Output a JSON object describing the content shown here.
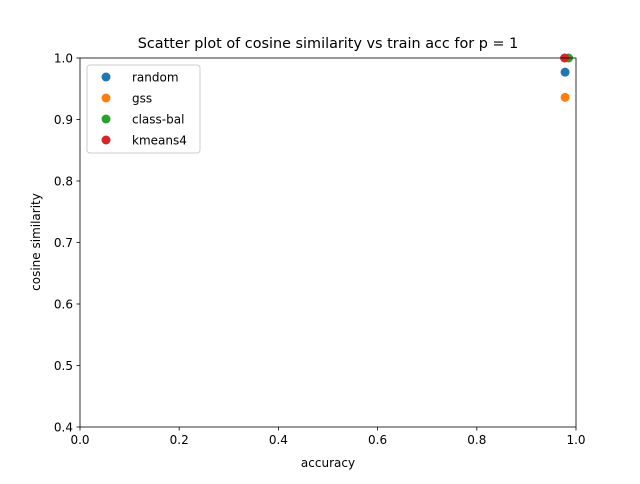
{
  "chart_data": {
    "type": "scatter",
    "title": "Scatter plot of cosine similarity vs train acc for p = 1",
    "xlabel": "accuracy",
    "ylabel": "cosine similarity",
    "xlim": [
      0.0,
      1.0
    ],
    "ylim": [
      0.4,
      1.0
    ],
    "x_ticks": [
      "0.0",
      "0.2",
      "0.4",
      "0.6",
      "0.8",
      "1.0"
    ],
    "y_ticks": [
      "0.4",
      "0.5",
      "0.6",
      "0.7",
      "0.8",
      "0.9",
      "1.0"
    ],
    "grid": false,
    "legend_position": "upper-left",
    "series": [
      {
        "name": "random",
        "color": "#1f77b4",
        "points": [
          {
            "x": 0.978,
            "y": 0.977
          }
        ]
      },
      {
        "name": "gss",
        "color": "#ff7f0e",
        "points": [
          {
            "x": 0.978,
            "y": 0.936
          }
        ]
      },
      {
        "name": "class-bal",
        "color": "#2ca02c",
        "points": [
          {
            "x": 0.985,
            "y": 1.0
          }
        ]
      },
      {
        "name": "kmeans4",
        "color": "#d62728",
        "points": [
          {
            "x": 0.977,
            "y": 1.0
          }
        ]
      }
    ]
  }
}
